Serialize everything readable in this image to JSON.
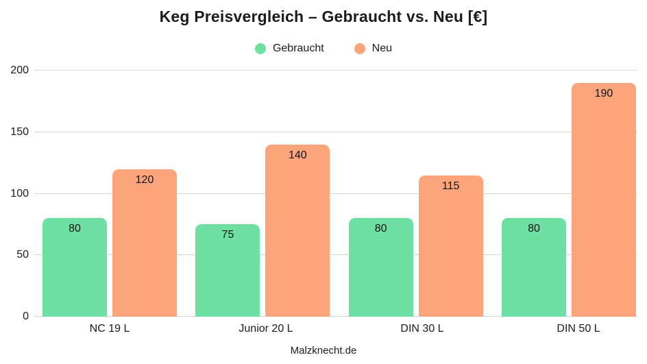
{
  "title": "Keg Preisvergleich – Gebraucht vs. Neu [€]",
  "footer": "Malzknecht.de",
  "colors": {
    "gebraucht": "#6ee0a3",
    "neu": "#fca57d",
    "grid": "#d7d7d7",
    "text": "#1b1b1b"
  },
  "chart_data": {
    "type": "bar",
    "categories": [
      "NC 19 L",
      "Junior 20 L",
      "DIN 30 L",
      "DIN 50 L"
    ],
    "series": [
      {
        "name": "Gebraucht",
        "color": "#6ee0a3",
        "values": [
          80,
          75,
          80,
          80
        ]
      },
      {
        "name": "Neu",
        "color": "#fca57d",
        "values": [
          120,
          140,
          115,
          190
        ]
      }
    ],
    "title": "Keg Preisvergleich – Gebraucht vs. Neu [€]",
    "xlabel": "",
    "ylabel": "",
    "ylim": [
      0,
      200
    ],
    "yticks": [
      0,
      50,
      100,
      150,
      200
    ],
    "grid": true,
    "legend_position": "top",
    "value_labels": true
  }
}
